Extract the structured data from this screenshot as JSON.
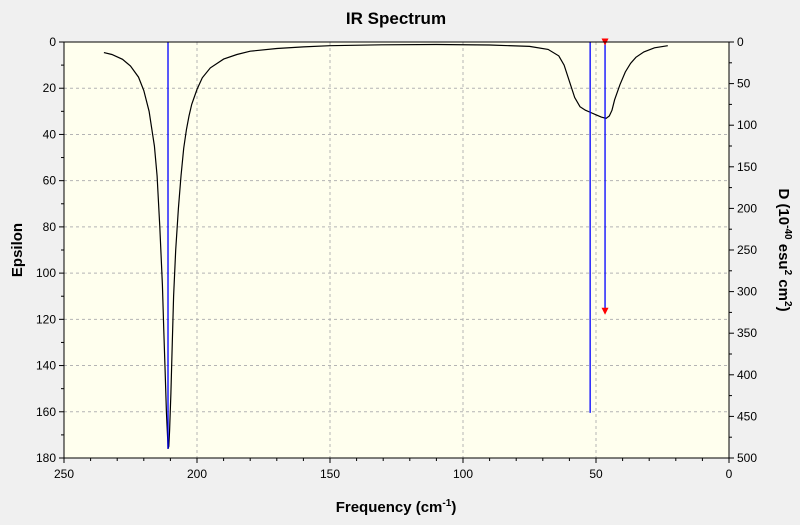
{
  "chart_data": {
    "type": "line",
    "title": "IR Spectrum",
    "xlabel": "Frequency",
    "xlabel_unit_base": "cm",
    "xlabel_unit_exp": "-1",
    "ylabel_left": "Epsilon",
    "ylabel_right": {
      "prefix": "D (10",
      "exp1": "-40",
      "mid": " esu",
      "exp2": "2",
      "space": " cm",
      "exp3": "2",
      "suffix": ")"
    },
    "xlim": [
      250,
      0
    ],
    "ylim_left": [
      0,
      180
    ],
    "ylim_right": [
      0,
      500
    ],
    "y_inverted": true,
    "grid": true,
    "x_ticks": [
      250,
      200,
      150,
      100,
      50,
      0
    ],
    "y_ticks_left": [
      0,
      20,
      40,
      60,
      80,
      100,
      120,
      140,
      160,
      180
    ],
    "y_ticks_right": [
      0,
      50,
      100,
      150,
      200,
      250,
      300,
      350,
      400,
      450,
      500
    ],
    "series": [
      {
        "kind": "spectrum",
        "color": "#000000",
        "points": [
          [
            235,
            4.6
          ],
          [
            232,
            5.4
          ],
          [
            228,
            7.5
          ],
          [
            225,
            10.4
          ],
          [
            222,
            15.2
          ],
          [
            220,
            21
          ],
          [
            218,
            30
          ],
          [
            216,
            45
          ],
          [
            215,
            58
          ],
          [
            214,
            80
          ],
          [
            213,
            105
          ],
          [
            212.5,
            125
          ],
          [
            212,
            142
          ],
          [
            211.5,
            160
          ],
          [
            211,
            172
          ],
          [
            210.9,
            176
          ],
          [
            210.6,
            175
          ],
          [
            210.3,
            168
          ],
          [
            209.8,
            152
          ],
          [
            209.3,
            130
          ],
          [
            208.8,
            110
          ],
          [
            208,
            90
          ],
          [
            207,
            72
          ],
          [
            206,
            58
          ],
          [
            205,
            46
          ],
          [
            204,
            38
          ],
          [
            203,
            32
          ],
          [
            202,
            27
          ],
          [
            200,
            20.5
          ],
          [
            198,
            15.5
          ],
          [
            195,
            11.2
          ],
          [
            190,
            7.4
          ],
          [
            185,
            5.4
          ],
          [
            180,
            4
          ],
          [
            170,
            2.8
          ],
          [
            160,
            2.1
          ],
          [
            150,
            1.6
          ],
          [
            130,
            1.2
          ],
          [
            110,
            1.1
          ],
          [
            90,
            1.3
          ],
          [
            75,
            1.9
          ],
          [
            68,
            3.2
          ],
          [
            64,
            6
          ],
          [
            62,
            10
          ],
          [
            60,
            17
          ],
          [
            58,
            24
          ],
          [
            56,
            28
          ],
          [
            54,
            29.5
          ],
          [
            52,
            30.5
          ],
          [
            50,
            31.5
          ],
          [
            48,
            32.5
          ],
          [
            47,
            32.8
          ],
          [
            46.2,
            33
          ],
          [
            45,
            32
          ],
          [
            44,
            29.5
          ],
          [
            43,
            25
          ],
          [
            41,
            18.5
          ],
          [
            39,
            13
          ],
          [
            37,
            9.2
          ],
          [
            35,
            6.6
          ],
          [
            32,
            4.3
          ],
          [
            28,
            2.5
          ],
          [
            23,
            1.6
          ]
        ]
      },
      {
        "kind": "stick",
        "color": "#0000ff",
        "axis": "left",
        "sticks": [
          {
            "x": 210.9,
            "y": 176
          },
          {
            "x": 52.2,
            "y": 160.5
          },
          {
            "x": 46.6,
            "y": 116.5
          }
        ]
      }
    ],
    "marker_color": "#ff0000",
    "markers": [
      {
        "x": 46.6,
        "y": 0
      },
      {
        "x": 46.6,
        "y": 116.5
      }
    ],
    "plot_background": "#ffffee",
    "grid_color": "#b4b4b4"
  }
}
